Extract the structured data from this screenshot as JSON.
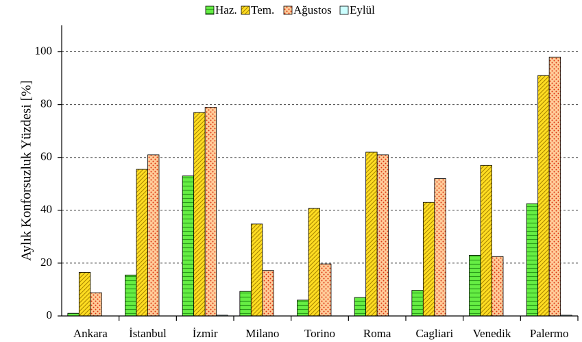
{
  "chart_data": {
    "type": "bar",
    "y_label": "Aylık Konforsuzluk Yüzdesi [%]",
    "categories": [
      "Ankara",
      "İstanbul",
      "İzmir",
      "Milano",
      "Torino",
      "Roma",
      "Cagliari",
      "Venedik",
      "Palermo"
    ],
    "series": [
      {
        "name": "Haz.",
        "color": "#66ee44",
        "hatch": "horizontal",
        "values": [
          1,
          15.5,
          53,
          9.3,
          6,
          7,
          9.7,
          23,
          42.5
        ]
      },
      {
        "name": "Tem.",
        "color": "#ffdd22",
        "hatch": "diagonal",
        "values": [
          16.5,
          55.5,
          77,
          34.8,
          40.7,
          62,
          43,
          57,
          91
        ]
      },
      {
        "name": "Ağustos",
        "color": "#ffcc99",
        "hatch": "dots",
        "values": [
          8.8,
          61,
          79,
          17.2,
          19.7,
          61,
          52,
          22.5,
          98
        ]
      },
      {
        "name": "Eylül",
        "color": "#ccffff",
        "hatch": "none",
        "values": [
          0,
          0,
          0.3,
          0,
          0,
          0,
          0,
          0,
          0.3
        ]
      }
    ],
    "ylim": [
      0,
      110
    ],
    "yticks": [
      0,
      20,
      40,
      60,
      80,
      100
    ],
    "grid": true,
    "legend": "top"
  }
}
